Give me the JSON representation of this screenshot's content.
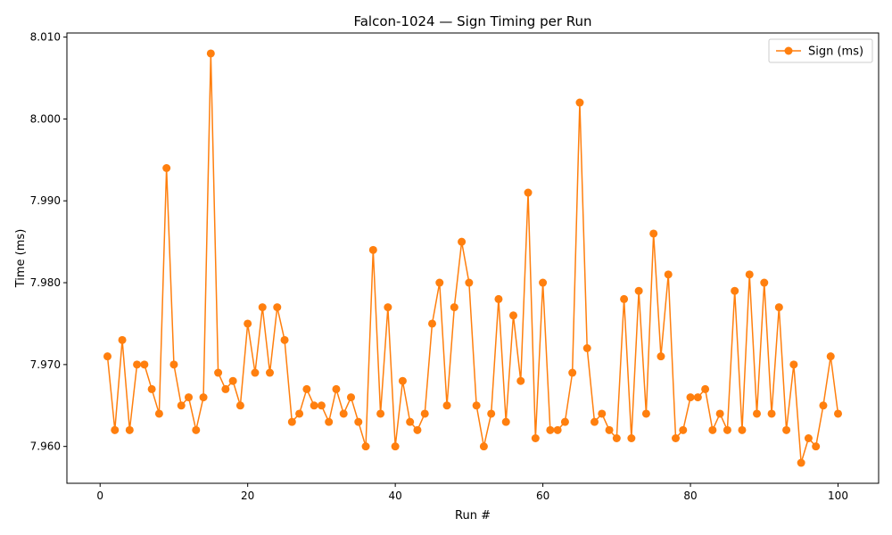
{
  "chart_data": {
    "type": "line",
    "title": "Falcon-1024 — Sign Timing per Run",
    "xlabel": "Run #",
    "ylabel": "Time (ms)",
    "xlim": [
      -4.5,
      105.5
    ],
    "ylim": [
      7.9555,
      8.0105
    ],
    "xticks": [
      0,
      20,
      40,
      60,
      80,
      100
    ],
    "yticks": [
      7.96,
      7.97,
      7.98,
      7.99,
      8.0,
      8.01
    ],
    "ytick_labels": [
      "7.960",
      "7.970",
      "7.980",
      "7.990",
      "8.000",
      "8.010"
    ],
    "grid": false,
    "legend_position": "top-right",
    "series": [
      {
        "name": "Sign (ms)",
        "color": "#ff7f0e",
        "marker": "circle",
        "x": [
          1,
          2,
          3,
          4,
          5,
          6,
          7,
          8,
          9,
          10,
          11,
          12,
          13,
          14,
          15,
          16,
          17,
          18,
          19,
          20,
          21,
          22,
          23,
          24,
          25,
          26,
          27,
          28,
          29,
          30,
          31,
          32,
          33,
          34,
          35,
          36,
          37,
          38,
          39,
          40,
          41,
          42,
          43,
          44,
          45,
          46,
          47,
          48,
          49,
          50,
          51,
          52,
          53,
          54,
          55,
          56,
          57,
          58,
          59,
          60,
          61,
          62,
          63,
          64,
          65,
          66,
          67,
          68,
          69,
          70,
          71,
          72,
          73,
          74,
          75,
          76,
          77,
          78,
          79,
          80,
          81,
          82,
          83,
          84,
          85,
          86,
          87,
          88,
          89,
          90,
          91,
          92,
          93,
          94,
          95,
          96,
          97,
          98,
          99,
          100
        ],
        "y": [
          7.971,
          7.962,
          7.973,
          7.962,
          7.97,
          7.97,
          7.967,
          7.964,
          7.994,
          7.97,
          7.965,
          7.966,
          7.962,
          7.966,
          8.008,
          7.969,
          7.967,
          7.968,
          7.965,
          7.975,
          7.969,
          7.977,
          7.969,
          7.977,
          7.973,
          7.963,
          7.964,
          7.967,
          7.965,
          7.965,
          7.963,
          7.967,
          7.964,
          7.966,
          7.963,
          7.96,
          7.984,
          7.964,
          7.977,
          7.96,
          7.968,
          7.963,
          7.962,
          7.964,
          7.975,
          7.98,
          7.965,
          7.977,
          7.985,
          7.98,
          7.965,
          7.96,
          7.964,
          7.978,
          7.963,
          7.976,
          7.968,
          7.991,
          7.961,
          7.98,
          7.962,
          7.962,
          7.963,
          7.969,
          8.002,
          7.972,
          7.963,
          7.964,
          7.962,
          7.961,
          7.978,
          7.961,
          7.979,
          7.964,
          7.986,
          7.971,
          7.981,
          7.961,
          7.962,
          7.966,
          7.966,
          7.967,
          7.962,
          7.964,
          7.962,
          7.979,
          7.962,
          7.981,
          7.964,
          7.98,
          7.964,
          7.977,
          7.962,
          7.97,
          7.958,
          7.961,
          7.96,
          7.965,
          7.971,
          7.964
        ]
      }
    ]
  }
}
